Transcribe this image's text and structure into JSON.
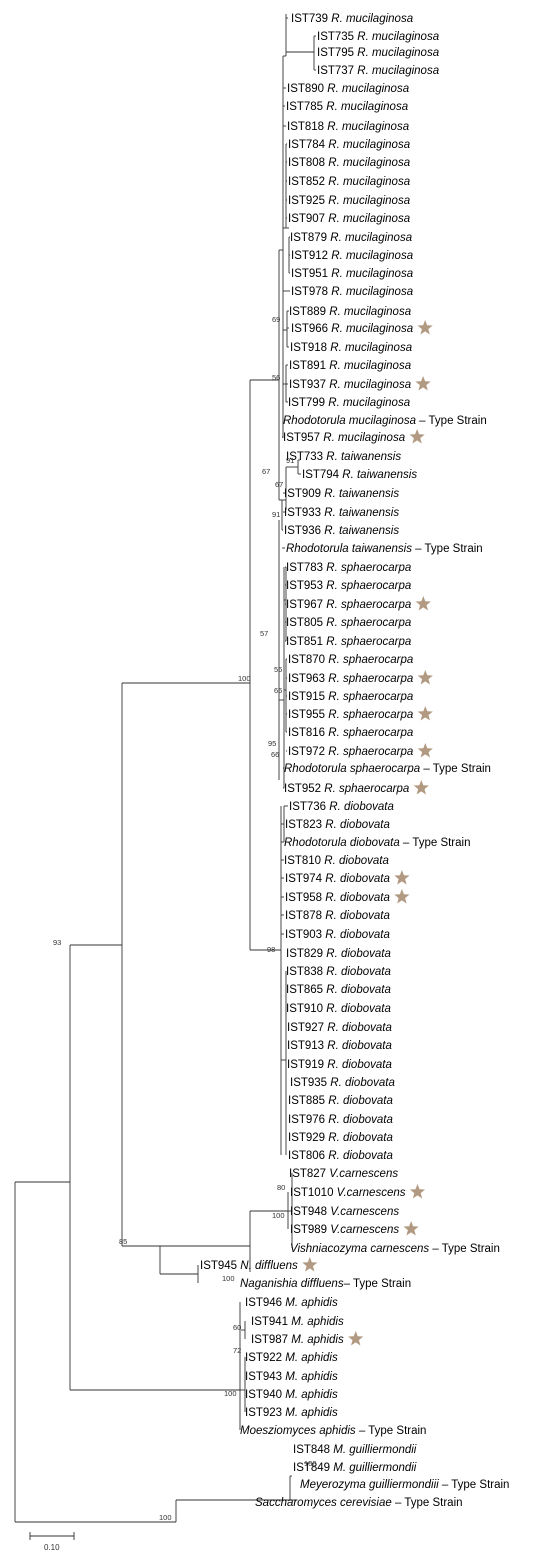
{
  "colors": {
    "highlight": "#1f78c8",
    "normal": "#000000",
    "star": "#b29a82"
  },
  "leaves": [
    {
      "id": "l00",
      "code": "IST739",
      "sp": "R. mucilaginosa",
      "hl": false,
      "star": false
    },
    {
      "id": "l01",
      "code": "IST735",
      "sp": "R. mucilaginosa",
      "hl": true,
      "star": false
    },
    {
      "id": "l02",
      "code": "IST795",
      "sp": "R. mucilaginosa",
      "hl": false,
      "star": false
    },
    {
      "id": "l03",
      "code": "IST737",
      "sp": "R. mucilaginosa",
      "hl": false,
      "star": false
    },
    {
      "id": "l04",
      "code": "IST890",
      "sp": "R. mucilaginosa",
      "hl": true,
      "star": false
    },
    {
      "id": "l05",
      "code": "IST785",
      "sp": "R. mucilaginosa",
      "hl": false,
      "star": false
    },
    {
      "id": "l06",
      "code": "IST818",
      "sp": "R. mucilaginosa",
      "hl": true,
      "star": false
    },
    {
      "id": "l07",
      "code": "IST784",
      "sp": "R. mucilaginosa",
      "hl": false,
      "star": false
    },
    {
      "id": "l08",
      "code": "IST808",
      "sp": "R. mucilaginosa",
      "hl": false,
      "star": false
    },
    {
      "id": "l09",
      "code": "IST852",
      "sp": "R. mucilaginosa",
      "hl": false,
      "star": false
    },
    {
      "id": "l10",
      "code": "IST925",
      "sp": "R. mucilaginosa",
      "hl": false,
      "star": false
    },
    {
      "id": "l11",
      "code": "IST907",
      "sp": "R. mucilaginosa",
      "hl": false,
      "star": false
    },
    {
      "id": "l12",
      "code": "IST879",
      "sp": "R. mucilaginosa",
      "hl": false,
      "star": false
    },
    {
      "id": "l13",
      "code": "IST912",
      "sp": "R. mucilaginosa",
      "hl": false,
      "star": false
    },
    {
      "id": "l14",
      "code": "IST951",
      "sp": "R. mucilaginosa",
      "hl": false,
      "star": false
    },
    {
      "id": "l15",
      "code": "IST978",
      "sp": "R. mucilaginosa",
      "hl": false,
      "star": false
    },
    {
      "id": "l16",
      "code": "IST889",
      "sp": "R. mucilaginosa",
      "hl": false,
      "star": false
    },
    {
      "id": "l17",
      "code": "IST966",
      "sp": "R. mucilaginosa",
      "hl": true,
      "star": true
    },
    {
      "id": "l18",
      "code": "IST918",
      "sp": "R. mucilaginosa",
      "hl": false,
      "star": false
    },
    {
      "id": "l19",
      "code": "IST891",
      "sp": "R. mucilaginosa",
      "hl": false,
      "star": false
    },
    {
      "id": "l20",
      "code": "IST937",
      "sp": "R. mucilaginosa",
      "hl": false,
      "star": true
    },
    {
      "id": "l21",
      "code": "IST799",
      "sp": "R. mucilaginosa",
      "hl": true,
      "star": false
    },
    {
      "id": "l22",
      "code": "",
      "sp": "Rhodotorula mucilaginosa",
      "suffix": " – Type Strain",
      "hl": false,
      "star": false
    },
    {
      "id": "l23",
      "code": "IST957",
      "sp": "R. mucilaginosa",
      "hl": false,
      "star": true
    },
    {
      "id": "l24",
      "code": "IST733",
      "sp": "R. taiwanensis",
      "hl": true,
      "star": false
    },
    {
      "id": "l25",
      "code": "IST794",
      "sp": "R. taiwanensis",
      "hl": false,
      "star": false
    },
    {
      "id": "l26",
      "code": "IST909",
      "sp": "R. taiwanensis",
      "hl": false,
      "star": false
    },
    {
      "id": "l27",
      "code": "IST933",
      "sp": "R. taiwanensis",
      "hl": false,
      "star": false
    },
    {
      "id": "l28",
      "code": "IST936",
      "sp": "R. taiwanensis",
      "hl": false,
      "star": false
    },
    {
      "id": "l29",
      "code": "",
      "sp": "Rhodotorula taiwanensis",
      "suffix": " – Type Strain",
      "hl": false,
      "star": false
    },
    {
      "id": "l30",
      "code": "IST783",
      "sp": "R. sphaerocarpa",
      "hl": false,
      "star": false
    },
    {
      "id": "l31",
      "code": "IST953",
      "sp": "R. sphaerocarpa",
      "hl": false,
      "star": false
    },
    {
      "id": "l32",
      "code": "IST967",
      "sp": "R. sphaerocarpa",
      "hl": false,
      "star": true
    },
    {
      "id": "l33",
      "code": "IST805",
      "sp": "R. sphaerocarpa",
      "hl": false,
      "star": false
    },
    {
      "id": "l34",
      "code": "IST851",
      "sp": "R. sphaerocarpa",
      "hl": false,
      "star": false
    },
    {
      "id": "l35",
      "code": "IST870",
      "sp": "R. sphaerocarpa",
      "hl": false,
      "star": false
    },
    {
      "id": "l36",
      "code": "IST963",
      "sp": "R. sphaerocarpa",
      "hl": true,
      "star": true
    },
    {
      "id": "l37",
      "code": "IST915",
      "sp": "R. sphaerocarpa",
      "hl": false,
      "star": false
    },
    {
      "id": "l38",
      "code": "IST955",
      "sp": "R. sphaerocarpa",
      "hl": false,
      "star": true
    },
    {
      "id": "l39",
      "code": "IST816",
      "sp": "R. sphaerocarpa",
      "hl": false,
      "star": false
    },
    {
      "id": "l40",
      "code": "IST972",
      "sp": "R. sphaerocarpa",
      "hl": false,
      "star": true
    },
    {
      "id": "l41",
      "code": "",
      "sp": "Rhodotorula sphaerocarpa",
      "suffix": " – Type Strain",
      "hl": false,
      "star": false
    },
    {
      "id": "l42",
      "code": "IST952",
      "sp": "R. sphaerocarpa",
      "hl": false,
      "star": true
    },
    {
      "id": "l43",
      "code": "IST736",
      "sp": "R. diobovata",
      "hl": true,
      "star": false
    },
    {
      "id": "l44",
      "code": "IST823",
      "sp": "R. diobovata",
      "hl": false,
      "star": false
    },
    {
      "id": "l45",
      "code": "",
      "sp": "Rhodotorula diobovata",
      "suffix": " – Type Strain",
      "hl": false,
      "star": false
    },
    {
      "id": "l46",
      "code": "IST810",
      "sp": "R. diobovata",
      "hl": false,
      "star": false
    },
    {
      "id": "l47",
      "code": "IST974",
      "sp": "R. diobovata",
      "hl": false,
      "star": true
    },
    {
      "id": "l48",
      "code": "IST958",
      "sp": "R. diobovata",
      "hl": false,
      "star": true
    },
    {
      "id": "l49",
      "code": "IST878",
      "sp": "R. diobovata",
      "hl": false,
      "star": false
    },
    {
      "id": "l50",
      "code": "IST903",
      "sp": "R. diobovata",
      "hl": false,
      "star": false
    },
    {
      "id": "l51",
      "code": "IST829",
      "sp": "R. diobovata",
      "hl": false,
      "star": false
    },
    {
      "id": "l52",
      "code": "IST838",
      "sp": "R. diobovata",
      "hl": false,
      "star": false
    },
    {
      "id": "l53",
      "code": "IST865",
      "sp": "R. diobovata",
      "hl": false,
      "star": false
    },
    {
      "id": "l54",
      "code": "IST910",
      "sp": "R. diobovata",
      "hl": false,
      "star": false
    },
    {
      "id": "l55",
      "code": "IST927",
      "sp": "R. diobovata",
      "hl": false,
      "star": false
    },
    {
      "id": "l56",
      "code": "IST913",
      "sp": "R. diobovata",
      "hl": false,
      "star": false
    },
    {
      "id": "l57",
      "code": "IST919",
      "sp": "R. diobovata",
      "hl": false,
      "star": false
    },
    {
      "id": "l58",
      "code": "IST935",
      "sp": "R. diobovata",
      "hl": false,
      "star": false
    },
    {
      "id": "l59",
      "code": "IST885",
      "sp": "R. diobovata",
      "hl": false,
      "star": false
    },
    {
      "id": "l60",
      "code": "IST976",
      "sp": "R. diobovata",
      "hl": false,
      "star": false
    },
    {
      "id": "l61",
      "code": "IST929",
      "sp": "R. diobovata",
      "hl": false,
      "star": false
    },
    {
      "id": "l62",
      "code": "IST806",
      "sp": "R. diobovata",
      "hl": false,
      "star": false
    },
    {
      "id": "l63",
      "code": "IST827",
      "sp": "V.carnescens",
      "hl": false,
      "star": false
    },
    {
      "id": "l64",
      "code": "IST1010",
      "sp": "V.carnescens",
      "hl": false,
      "star": true
    },
    {
      "id": "l65",
      "code": "IST948",
      "sp": "V.carnescens",
      "hl": false,
      "star": false
    },
    {
      "id": "l66",
      "code": "IST989",
      "sp": "V.carnescens",
      "hl": false,
      "star": true
    },
    {
      "id": "l67",
      "code": "",
      "sp": "Vishniacozyma carnescens",
      "suffix": " – Type Strain",
      "hl": false,
      "star": false
    },
    {
      "id": "l68",
      "code": "IST945",
      "sp": "N. diffluens",
      "hl": false,
      "star": true
    },
    {
      "id": "l69",
      "code": "",
      "sp": "Naganishia diffluens",
      "suffix": "– Type Strain",
      "hl": false,
      "star": false
    },
    {
      "id": "l70",
      "code": "IST946",
      "sp": "M. aphidis",
      "hl": false,
      "star": false
    },
    {
      "id": "l71",
      "code": "IST941",
      "sp": "M. aphidis",
      "hl": false,
      "star": false
    },
    {
      "id": "l72",
      "code": "IST987",
      "sp": "M. aphidis",
      "hl": false,
      "star": true
    },
    {
      "id": "l73",
      "code": "IST922",
      "sp": "M. aphidis",
      "hl": false,
      "star": false
    },
    {
      "id": "l74",
      "code": "IST943",
      "sp": "M. aphidis",
      "hl": false,
      "star": false
    },
    {
      "id": "l75",
      "code": "IST940",
      "sp": "M. aphidis",
      "hl": false,
      "star": false
    },
    {
      "id": "l76",
      "code": "IST923",
      "sp": "M. aphidis",
      "hl": false,
      "star": false
    },
    {
      "id": "l77",
      "code": "",
      "sp": "Moesziomyces aphidis",
      "suffix": " – Type Strain",
      "hl": false,
      "star": false
    },
    {
      "id": "l78",
      "code": "IST848",
      "sp": "M. guilliermondii",
      "hl": false,
      "star": false
    },
    {
      "id": "l79",
      "code": "IST849",
      "sp": "M. guilliermondii",
      "hl": true,
      "star": false
    },
    {
      "id": "l80",
      "code": "",
      "sp": "Meyerozyma guilliermondiii",
      "suffix": " – Type Strain",
      "hl": false,
      "star": false
    },
    {
      "id": "l81",
      "code": "",
      "sp": "Saccharomyces cerevisiae",
      "suffix": " – Type Strain",
      "hl": false,
      "star": false
    }
  ],
  "bootstrap": [
    "69",
    "56",
    "67",
    "91",
    "67",
    "91",
    "57",
    "56",
    "66",
    "95",
    "66",
    "100",
    "98",
    "93",
    "80",
    "100",
    "85",
    "100",
    "60",
    "72",
    "100",
    "100",
    "100"
  ],
  "scale_bar": {
    "label": "0.10"
  }
}
